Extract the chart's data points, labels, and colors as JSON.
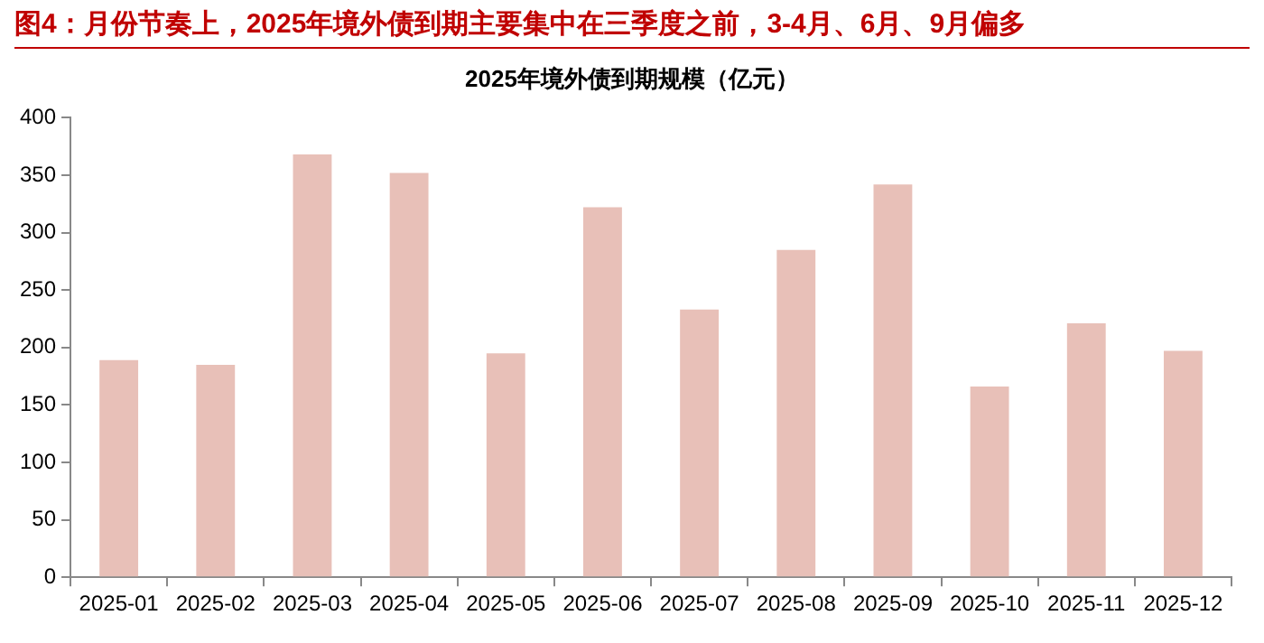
{
  "chart_data": {
    "type": "bar",
    "title": "图4：月份节奏上，2025年境外债到期主要集中在三季度之前，3-4月、6月、9月偏多",
    "subtitle": "2025年境外债到期规模（亿元）",
    "categories": [
      "2025-01",
      "2025-02",
      "2025-03",
      "2025-04",
      "2025-05",
      "2025-06",
      "2025-07",
      "2025-08",
      "2025-09",
      "2025-10",
      "2025-11",
      "2025-12"
    ],
    "values": [
      189,
      185,
      368,
      352,
      195,
      322,
      233,
      285,
      342,
      166,
      221,
      197
    ],
    "color": "#e8c0b8",
    "ylim": [
      0,
      400
    ],
    "yticks": [
      0,
      50,
      100,
      150,
      200,
      250,
      300,
      350,
      400
    ],
    "grid": false,
    "legend": false
  }
}
